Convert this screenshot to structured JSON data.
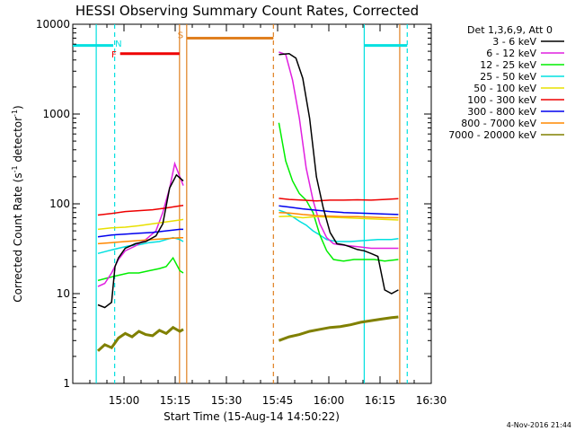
{
  "chart_data": {
    "type": "line",
    "title": "HESSI Observing Summary Count Rates, Corrected",
    "xlabel": "Start Time (15-Aug-14 14:50:22)",
    "ylabel_main": "Corrected Count Rate (s",
    "ylabel_exp1": "-1",
    "ylabel_mid": " detector",
    "ylabel_exp2": "-1",
    "ylabel_end": ")",
    "ylim": [
      1,
      10000
    ],
    "yscale": "log",
    "xlim_minutes": [
      -5.37,
      99.63
    ],
    "xtick_labels": [
      "15:00",
      "15:15",
      "15:30",
      "15:45",
      "16:00",
      "16:15",
      "16:30"
    ],
    "ytick_labels": [
      "1",
      "10",
      "100",
      "1000",
      "10000"
    ],
    "legend_header": "Det 1,3,6,9, Att 0",
    "legend_position": "right",
    "series": [
      {
        "name": "3 - 6 keV",
        "color": "#000000",
        "points": [
          [
            2,
            7.5
          ],
          [
            4,
            7
          ],
          [
            6,
            8
          ],
          [
            7,
            20
          ],
          [
            8,
            25
          ],
          [
            10,
            32
          ],
          [
            13,
            36
          ],
          [
            16,
            38
          ],
          [
            19,
            44
          ],
          [
            21,
            60
          ],
          [
            23,
            150
          ],
          [
            25,
            210
          ],
          [
            27,
            180
          ],
          [
            55,
            4600
          ],
          [
            58,
            4700
          ],
          [
            60,
            4200
          ],
          [
            62,
            2500
          ],
          [
            64,
            900
          ],
          [
            66,
            200
          ],
          [
            68,
            90
          ],
          [
            70,
            48
          ],
          [
            72,
            36
          ],
          [
            74,
            35
          ],
          [
            76,
            33
          ],
          [
            78,
            31
          ],
          [
            80,
            30
          ],
          [
            82,
            28
          ],
          [
            84,
            26
          ],
          [
            86,
            11
          ],
          [
            88,
            10
          ],
          [
            90,
            11
          ]
        ]
      },
      {
        "name": "6 - 12 keV",
        "color": "#e020e0",
        "points": [
          [
            2,
            12
          ],
          [
            4,
            13
          ],
          [
            6,
            17
          ],
          [
            8,
            24
          ],
          [
            10,
            30
          ],
          [
            13,
            34
          ],
          [
            16,
            40
          ],
          [
            19,
            50
          ],
          [
            21,
            80
          ],
          [
            23,
            150
          ],
          [
            24.5,
            280
          ],
          [
            26,
            200
          ],
          [
            27,
            160
          ],
          [
            55,
            4900
          ],
          [
            57,
            4600
          ],
          [
            59,
            2400
          ],
          [
            61,
            900
          ],
          [
            63,
            250
          ],
          [
            65,
            110
          ],
          [
            67,
            60
          ],
          [
            69,
            42
          ],
          [
            71,
            36
          ],
          [
            73,
            35
          ],
          [
            76,
            34
          ],
          [
            79,
            33
          ],
          [
            82,
            32
          ],
          [
            85,
            32
          ],
          [
            88,
            32
          ],
          [
            90,
            32
          ]
        ]
      },
      {
        "name": "12 - 25 keV",
        "color": "#00ee00",
        "points": [
          [
            2,
            14
          ],
          [
            5,
            15
          ],
          [
            8,
            16
          ],
          [
            11,
            17
          ],
          [
            14,
            17
          ],
          [
            17,
            18
          ],
          [
            20,
            19
          ],
          [
            22,
            20
          ],
          [
            24,
            25
          ],
          [
            26,
            18
          ],
          [
            27,
            17
          ],
          [
            55,
            800
          ],
          [
            57,
            300
          ],
          [
            59,
            180
          ],
          [
            61,
            130
          ],
          [
            63,
            110
          ],
          [
            65,
            80
          ],
          [
            67,
            45
          ],
          [
            69,
            30
          ],
          [
            71,
            24
          ],
          [
            74,
            23
          ],
          [
            77,
            24
          ],
          [
            80,
            24
          ],
          [
            83,
            24
          ],
          [
            86,
            23
          ],
          [
            90,
            24
          ]
        ]
      },
      {
        "name": "25 - 50 keV",
        "color": "#00e0e0",
        "points": [
          [
            2,
            28
          ],
          [
            5,
            30
          ],
          [
            8,
            32
          ],
          [
            11,
            34
          ],
          [
            14,
            35
          ],
          [
            17,
            37
          ],
          [
            20,
            38
          ],
          [
            22,
            40
          ],
          [
            24,
            42
          ],
          [
            26,
            40
          ],
          [
            27,
            38
          ],
          [
            55,
            85
          ],
          [
            57,
            80
          ],
          [
            59,
            72
          ],
          [
            61,
            64
          ],
          [
            63,
            58
          ],
          [
            65,
            50
          ],
          [
            67,
            45
          ],
          [
            69,
            40
          ],
          [
            72,
            38
          ],
          [
            76,
            38
          ],
          [
            80,
            39
          ],
          [
            84,
            40
          ],
          [
            88,
            40
          ],
          [
            90,
            41
          ]
        ]
      },
      {
        "name": "50 - 100 keV",
        "color": "#e8e000",
        "points": [
          [
            2,
            52
          ],
          [
            6,
            54
          ],
          [
            10,
            55
          ],
          [
            14,
            57
          ],
          [
            18,
            60
          ],
          [
            22,
            63
          ],
          [
            26,
            66
          ],
          [
            27,
            67
          ],
          [
            55,
            72
          ],
          [
            58,
            73
          ],
          [
            62,
            70
          ],
          [
            66,
            72
          ],
          [
            70,
            71
          ],
          [
            74,
            70
          ],
          [
            78,
            69
          ],
          [
            82,
            68
          ],
          [
            86,
            67
          ],
          [
            90,
            66
          ]
        ]
      },
      {
        "name": "100 - 300 keV",
        "color": "#ee0000",
        "points": [
          [
            2,
            75
          ],
          [
            6,
            78
          ],
          [
            10,
            82
          ],
          [
            14,
            84
          ],
          [
            18,
            86
          ],
          [
            22,
            90
          ],
          [
            26,
            95
          ],
          [
            27,
            96
          ],
          [
            55,
            115
          ],
          [
            58,
            112
          ],
          [
            62,
            110
          ],
          [
            66,
            108
          ],
          [
            70,
            110
          ],
          [
            74,
            110
          ],
          [
            78,
            111
          ],
          [
            82,
            110
          ],
          [
            86,
            112
          ],
          [
            90,
            114
          ]
        ]
      },
      {
        "name": "300 - 800 keV",
        "color": "#0000ee",
        "points": [
          [
            2,
            43
          ],
          [
            6,
            45
          ],
          [
            10,
            46
          ],
          [
            14,
            47
          ],
          [
            18,
            48
          ],
          [
            22,
            50
          ],
          [
            26,
            52
          ],
          [
            27,
            52
          ],
          [
            55,
            95
          ],
          [
            58,
            92
          ],
          [
            62,
            88
          ],
          [
            66,
            85
          ],
          [
            70,
            82
          ],
          [
            74,
            80
          ],
          [
            78,
            79
          ],
          [
            82,
            78
          ],
          [
            86,
            77
          ],
          [
            90,
            76
          ]
        ]
      },
      {
        "name": "800 - 7000 keV",
        "color": "#ff8800",
        "points": [
          [
            2,
            36
          ],
          [
            6,
            37
          ],
          [
            10,
            38
          ],
          [
            14,
            39
          ],
          [
            18,
            40
          ],
          [
            22,
            41
          ],
          [
            26,
            42
          ],
          [
            27,
            42
          ],
          [
            55,
            80
          ],
          [
            58,
            79
          ],
          [
            62,
            76
          ],
          [
            66,
            74
          ],
          [
            70,
            73
          ],
          [
            74,
            72
          ],
          [
            78,
            72
          ],
          [
            82,
            71
          ],
          [
            86,
            70
          ],
          [
            90,
            70
          ]
        ]
      },
      {
        "name": "7000 - 20000 keV",
        "color": "#808000",
        "points": [
          [
            2,
            2.3
          ],
          [
            4,
            2.7
          ],
          [
            6,
            2.5
          ],
          [
            8,
            3.2
          ],
          [
            10,
            3.6
          ],
          [
            12,
            3.3
          ],
          [
            14,
            3.8
          ],
          [
            16,
            3.5
          ],
          [
            18,
            3.4
          ],
          [
            20,
            3.9
          ],
          [
            22,
            3.6
          ],
          [
            24,
            4.2
          ],
          [
            26,
            3.8
          ],
          [
            27,
            4
          ],
          [
            55,
            3
          ],
          [
            58,
            3.3
          ],
          [
            61,
            3.5
          ],
          [
            64,
            3.8
          ],
          [
            67,
            4
          ],
          [
            70,
            4.2
          ],
          [
            73,
            4.3
          ],
          [
            76,
            4.5
          ],
          [
            79,
            4.8
          ],
          [
            82,
            5
          ],
          [
            85,
            5.2
          ],
          [
            88,
            5.4
          ],
          [
            90,
            5.5
          ]
        ]
      }
    ],
    "vertical_lines": [
      {
        "x": 1.5,
        "color": "#00e0e0",
        "style": "solid"
      },
      {
        "x": 6.9,
        "color": "#00e0e0",
        "style": "dashed"
      },
      {
        "x": 25.9,
        "color": "#e08020",
        "style": "solid"
      },
      {
        "x": 28.0,
        "color": "#e08020",
        "style": "solid"
      },
      {
        "x": 53.4,
        "color": "#e08020",
        "style": "dashed"
      },
      {
        "x": 80.0,
        "color": "#00e0e0",
        "style": "solid"
      },
      {
        "x": 92.6,
        "color": "#00e0e0",
        "style": "dashed"
      },
      {
        "x": 90.4,
        "color": "#e08020",
        "style": "solid"
      }
    ],
    "flag_bars": [
      {
        "label": "",
        "color": "#00e0e0",
        "x0": -5.37,
        "x1": 6.5,
        "level": 5800
      },
      {
        "label": "N",
        "color": "#00e0e0",
        "label_x": 8.0,
        "label_level": 6200
      },
      {
        "label": "F",
        "color": "#ee0000",
        "x0": 8.5,
        "x1": 25.9,
        "level": 4700,
        "label_x": 6.7,
        "label_level": 4700
      },
      {
        "label": "S",
        "color": "#e08020",
        "x0": 28.0,
        "x1": 53.4,
        "level": 7000,
        "label_x": 26.2,
        "label_level": 7700
      },
      {
        "label": "",
        "color": "#00e0e0",
        "x0": 80.0,
        "x1": 92.6,
        "level": 5800
      }
    ]
  },
  "footer_stamp": "4-Nov-2016 21:44"
}
